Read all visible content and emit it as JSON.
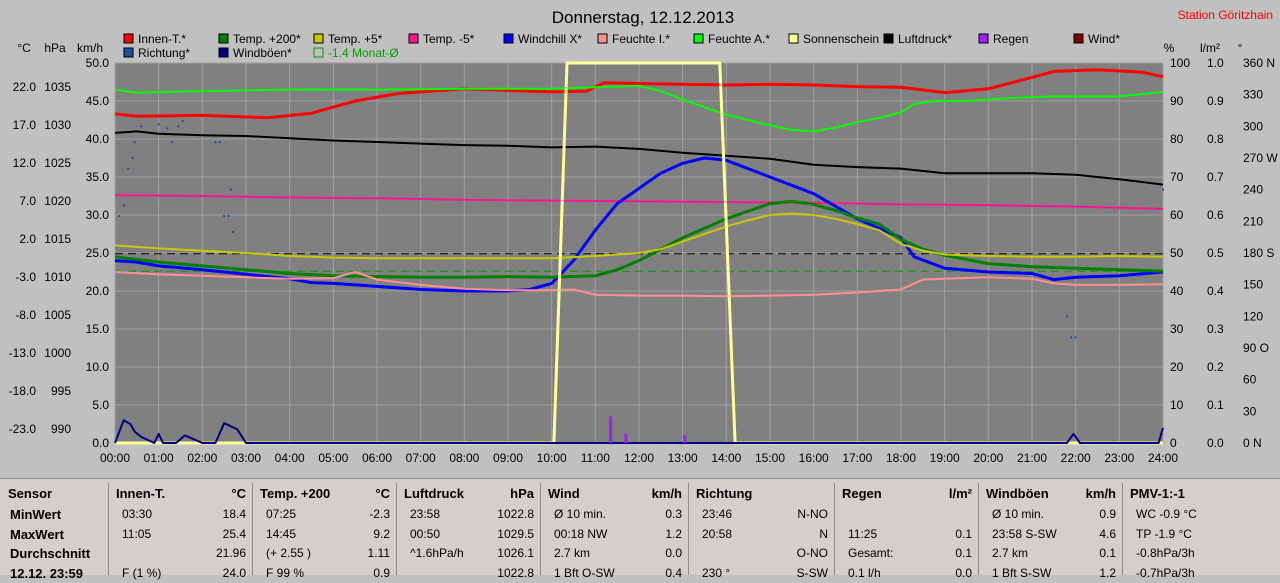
{
  "header": {
    "title": "Donnerstag, 12.12.2013",
    "station": "Station Göritzhain"
  },
  "axes": {
    "left_units": [
      "°C",
      "hPa",
      "km/h"
    ],
    "right_units": [
      "%",
      "l/m²",
      "°"
    ],
    "temp_ticks": [
      "22.0",
      "17.0",
      "12.0",
      "7.0",
      "2.0",
      "-3.0",
      "-8.0",
      "-13.0",
      "-18.0",
      "-23.0"
    ],
    "hpa_ticks": [
      "1035",
      "1030",
      "1025",
      "1020",
      "1015",
      "1010",
      "1005",
      "1000",
      "995",
      "990"
    ],
    "kmh_ticks": [
      "50.0",
      "45.0",
      "40.0",
      "35.0",
      "30.0",
      "25.0",
      "20.0",
      "15.0",
      "10.0",
      "5.0",
      "0.0"
    ],
    "pct_ticks": [
      "100",
      "90",
      "80",
      "70",
      "60",
      "50",
      "40",
      "30",
      "20",
      "10",
      "0"
    ],
    "rain_ticks": [
      "1.0",
      "0.9",
      "0.8",
      "0.7",
      "0.6",
      "0.5",
      "0.4",
      "0.3",
      "0.2",
      "0.1",
      "0.0"
    ],
    "deg_ticks": [
      "360 N",
      "330",
      "300",
      "270 W",
      "240",
      "210",
      "180 S",
      "150",
      "120",
      "90 O",
      "60",
      "30",
      "0 N"
    ],
    "x_ticks": [
      "00:00",
      "01:00",
      "02:00",
      "03:00",
      "04:00",
      "05:00",
      "06:00",
      "07:00",
      "08:00",
      "09:00",
      "10:00",
      "11:00",
      "12:00",
      "13:00",
      "14:00",
      "15:00",
      "16:00",
      "17:00",
      "18:00",
      "19:00",
      "20:00",
      "21:00",
      "22:00",
      "23:00",
      "24:00"
    ]
  },
  "legend": [
    {
      "label": "Innen-T.*",
      "color": "#ff0000"
    },
    {
      "label": "Temp. +200*",
      "color": "#008000"
    },
    {
      "label": "Temp. +5*",
      "color": "#c8c800"
    },
    {
      "label": "Temp. -5*",
      "color": "#ff1493"
    },
    {
      "label": "Windchill X*",
      "color": "#0000ff"
    },
    {
      "label": "Feuchte I.*",
      "color": "#ff9090"
    },
    {
      "label": "Feuchte A.*",
      "color": "#00ff00"
    },
    {
      "label": "Sonnenschein",
      "color": "#ffff99"
    },
    {
      "label": "Luftdruck*",
      "color": "#000000"
    },
    {
      "label": "Regen",
      "color": "#a020f0"
    },
    {
      "label": "Wind*",
      "color": "#800000"
    },
    {
      "label": "Richtung*",
      "color": "#1e50a0"
    },
    {
      "label": "Windböen*",
      "color": "#000080"
    },
    {
      "label": "-1.4 Monat-Ø",
      "color": "#00a000"
    }
  ],
  "chart_data": {
    "type": "line",
    "x_unit": "hour",
    "xlim": [
      0,
      24
    ],
    "temp_range": [
      -23,
      27
    ],
    "hpa_range": [
      990,
      1040
    ],
    "kmh_range": [
      0,
      50
    ],
    "pct_range": [
      0,
      100
    ],
    "series": [
      {
        "name": "Innen-T.*",
        "color": "#ff0000",
        "axis": "kmh",
        "width": 3,
        "x": [
          0,
          0.5,
          2,
          3.5,
          4.5,
          5.5,
          6.5,
          8,
          9,
          10,
          10.8,
          11.2,
          12,
          13,
          14,
          15,
          16,
          17,
          18,
          19,
          20,
          20.8,
          21.5,
          22.5,
          23.5,
          24
        ],
        "y": [
          43.3,
          43.0,
          43.1,
          42.8,
          43.4,
          45.0,
          46.0,
          46.6,
          46.4,
          46.2,
          46.3,
          47.4,
          47.3,
          47.2,
          47.1,
          47.2,
          47.1,
          46.9,
          46.8,
          46.1,
          46.6,
          47.8,
          48.9,
          49.1,
          48.8,
          48.2
        ]
      },
      {
        "name": "Feuchte A.*",
        "color": "#00ff00",
        "axis": "kmh",
        "width": 2,
        "x": [
          0,
          0.5,
          2,
          4,
          6,
          8,
          10,
          11,
          12,
          12.5,
          13,
          14,
          15,
          15.5,
          16,
          16.5,
          17,
          17.5,
          18,
          18.3,
          18.8,
          19.5,
          20.5,
          21.5,
          23,
          24
        ],
        "y": [
          46.5,
          46.1,
          46.3,
          46.5,
          46.5,
          46.6,
          46.6,
          46.8,
          47.0,
          46.3,
          45.2,
          43.2,
          41.8,
          41.2,
          41.0,
          41.5,
          42.2,
          42.8,
          43.5,
          44.6,
          45.0,
          45.0,
          45.4,
          45.6,
          45.6,
          46.2
        ]
      },
      {
        "name": "Luftdruck*",
        "color": "#000000",
        "axis": "kmh",
        "width": 2,
        "x": [
          0,
          0.5,
          1,
          2,
          3,
          4,
          5,
          6,
          7,
          8,
          9,
          10,
          11,
          12,
          13,
          14,
          15,
          16,
          17,
          18,
          19,
          20,
          21,
          22,
          23,
          24
        ],
        "y": [
          40.8,
          41.0,
          40.7,
          40.5,
          40.4,
          40.1,
          39.8,
          39.6,
          39.4,
          39.2,
          39.1,
          38.9,
          39.0,
          38.7,
          38.2,
          37.8,
          37.4,
          36.6,
          36.3,
          36.1,
          35.5,
          35.5,
          35.5,
          35.3,
          34.7,
          34.0
        ]
      },
      {
        "name": "Temp. -5*",
        "color": "#ff1493",
        "axis": "kmh",
        "width": 2,
        "x": [
          0,
          2,
          4,
          6,
          8,
          10,
          12,
          14,
          16,
          18,
          20,
          22,
          24
        ],
        "y": [
          32.6,
          32.5,
          32.3,
          32.2,
          32.0,
          31.9,
          31.8,
          31.7,
          31.6,
          31.4,
          31.3,
          31.1,
          30.8
        ]
      },
      {
        "name": "Windchill X*",
        "color": "#0000ff",
        "axis": "kmh",
        "width": 3,
        "x": [
          0,
          0.5,
          1,
          2,
          3,
          4,
          4.5,
          5,
          6,
          7,
          8,
          9,
          9.5,
          10,
          10.5,
          11,
          11.5,
          12,
          12.5,
          13,
          13.5,
          14,
          15,
          16,
          17,
          18,
          18.3,
          19,
          20,
          21,
          21.5,
          22,
          23,
          24
        ],
        "y": [
          24.0,
          23.8,
          23.3,
          22.8,
          22.2,
          21.6,
          21.1,
          21.0,
          20.6,
          20.2,
          20.0,
          20.0,
          20.2,
          21.0,
          24.0,
          28.0,
          31.5,
          33.5,
          35.5,
          36.8,
          37.5,
          37.2,
          35.0,
          32.8,
          29.5,
          27.0,
          24.5,
          23.0,
          22.5,
          22.3,
          21.5,
          21.8,
          22.0,
          22.5
        ]
      },
      {
        "name": "Temp. +200*",
        "color": "#008000",
        "axis": "kmh",
        "width": 3,
        "x": [
          0,
          1,
          2,
          3,
          4,
          5,
          6,
          7,
          8,
          9,
          10,
          11,
          11.5,
          12,
          12.5,
          13,
          14,
          15,
          15.5,
          16,
          16.5,
          17,
          17.5,
          18,
          18.5,
          19,
          20,
          21,
          22,
          23,
          24
        ],
        "y": [
          24.5,
          23.8,
          23.3,
          22.8,
          22.3,
          22.0,
          21.9,
          21.8,
          21.8,
          21.9,
          21.8,
          22.0,
          22.8,
          24.0,
          25.5,
          27.0,
          29.5,
          31.5,
          31.8,
          31.4,
          30.6,
          29.6,
          28.8,
          26.8,
          25.5,
          24.7,
          23.6,
          23.2,
          23.0,
          22.8,
          22.6
        ]
      },
      {
        "name": "Temp. +5*",
        "color": "#c8c800",
        "axis": "kmh",
        "width": 2,
        "x": [
          0,
          1,
          2,
          3,
          4,
          5,
          6,
          7,
          8,
          9,
          10,
          11,
          12,
          12.5,
          13,
          13.5,
          14,
          14.5,
          15,
          15.5,
          16,
          16.5,
          17,
          17.5,
          18,
          18.5,
          19,
          20,
          21,
          22,
          23,
          24
        ],
        "y": [
          26.0,
          25.6,
          25.3,
          25.0,
          24.6,
          24.4,
          24.3,
          24.3,
          24.3,
          24.3,
          24.3,
          24.6,
          25.0,
          25.5,
          26.5,
          27.5,
          28.5,
          29.3,
          30.0,
          30.2,
          30.0,
          29.5,
          28.8,
          28.0,
          26.2,
          25.3,
          24.8,
          24.6,
          24.5,
          24.5,
          24.6,
          24.5
        ]
      },
      {
        "name": "Feuchte I.*",
        "color": "#ff9090",
        "axis": "kmh",
        "width": 2,
        "x": [
          0,
          1,
          2,
          3,
          4,
          5,
          5.5,
          6,
          7,
          8,
          9,
          10,
          10.5,
          11,
          12,
          13,
          14,
          15,
          16,
          17,
          17.5,
          18,
          18.5,
          19,
          20,
          21,
          21.5,
          22,
          23,
          24
        ],
        "y": [
          22.5,
          22.2,
          22.0,
          21.8,
          21.6,
          21.7,
          22.5,
          21.5,
          20.8,
          20.3,
          20.1,
          20.1,
          20.2,
          19.5,
          19.4,
          19.4,
          19.3,
          19.4,
          19.5,
          19.8,
          20.0,
          20.2,
          21.5,
          21.6,
          21.8,
          21.6,
          21.0,
          20.8,
          20.8,
          20.9
        ]
      },
      {
        "name": "Sonnenschein",
        "color": "#ffff99",
        "axis": "kmh",
        "width": 3,
        "x": [
          0,
          10.05,
          10.35,
          13.85,
          14.2,
          24
        ],
        "y": [
          0,
          0,
          50,
          50,
          0,
          0
        ]
      },
      {
        "name": "Windböen*",
        "color": "#000080",
        "axis": "kmh",
        "width": 2,
        "x": [
          0,
          0.2,
          0.35,
          0.45,
          0.6,
          0.9,
          1.0,
          1.1,
          1.4,
          1.6,
          1.8,
          2.0,
          2.3,
          2.5,
          2.8,
          3.0,
          3.2,
          21.8,
          21.95,
          22.1,
          22.3,
          23.9,
          24
        ],
        "y": [
          0,
          3,
          2.5,
          1.5,
          0.8,
          0,
          1.2,
          0,
          0,
          1.0,
          0.5,
          0,
          0,
          2.6,
          1.8,
          0,
          0,
          0,
          1.2,
          0,
          0,
          0,
          2.0
        ]
      }
    ],
    "wind_direction": {
      "name": "Richtung*",
      "color": "#1e50a0",
      "axis": "deg",
      "x": [
        0.1,
        0.2,
        0.3,
        0.4,
        0.45,
        0.6,
        1.0,
        1.2,
        1.3,
        1.45,
        1.55,
        2.3,
        2.4,
        2.5,
        2.6,
        2.65,
        2.7,
        21.8,
        21.9,
        22.0,
        24
      ],
      "y": [
        215,
        225,
        260,
        270,
        285,
        300,
        302,
        298,
        285,
        300,
        305,
        285,
        285,
        215,
        215,
        240,
        200,
        120,
        100,
        100,
        240
      ]
    },
    "rain": {
      "name": "Regen",
      "color": "#a020f0",
      "axis": "rain",
      "x": [
        11.35,
        11.7,
        13.05
      ],
      "y": [
        0.07,
        0.025,
        0.02
      ]
    },
    "references": [
      {
        "name": "-1.4 Monat-Ø",
        "color": "#00a000",
        "kmh_value": 22.6,
        "style": "dashed"
      },
      {
        "name": "zero",
        "color": "#000000",
        "kmh_value": 24.9,
        "style": "dashed"
      }
    ]
  },
  "stats": {
    "row_labels": {
      "min": "MinWert",
      "max": "MaxWert",
      "avg": "Durchschnitt",
      "last": "12.12. 23:59"
    },
    "sensor_header": "Sensor",
    "columns": [
      {
        "title": "Innen-T.",
        "unit": "°C",
        "rows": [
          [
            "03:30",
            "18.4"
          ],
          [
            "11:05",
            "25.4"
          ],
          [
            "",
            "21.96"
          ],
          [
            "F (1 %)",
            "24.0"
          ]
        ]
      },
      {
        "title": "Temp. +200",
        "unit": "°C",
        "rows": [
          [
            "07:25",
            "-2.3"
          ],
          [
            "14:45",
            "9.2"
          ],
          [
            "(+ 2.55 )",
            "1.11"
          ],
          [
            "F 99 %",
            "0.9"
          ]
        ]
      },
      {
        "title": "Luftdruck",
        "unit": "hPa",
        "rows": [
          [
            "23:58",
            "1022.8"
          ],
          [
            "00:50",
            "1029.5"
          ],
          [
            "^1.6hPa/h",
            "1026.1"
          ],
          [
            "",
            "1022.8"
          ]
        ]
      },
      {
        "title": "Wind",
        "unit": "km/h",
        "rows": [
          [
            "Ø 10 min.",
            "0.3"
          ],
          [
            "00:18  NW",
            "1.2"
          ],
          [
            "2.7 km",
            "0.0"
          ],
          [
            "1 Bft O-SW",
            "0.4"
          ]
        ]
      },
      {
        "title": "Richtung",
        "unit": "",
        "rows": [
          [
            "23:46",
            "N-NO"
          ],
          [
            "20:58",
            "N"
          ],
          [
            "",
            "O-NO"
          ],
          [
            "230 °",
            "S-SW"
          ]
        ]
      },
      {
        "title": "Regen",
        "unit": "l/m²",
        "rows": [
          [
            "",
            ""
          ],
          [
            "11:25",
            "0.1"
          ],
          [
            "Gesamt:",
            "0.1"
          ],
          [
            "0.1 l/h",
            "0.0"
          ]
        ]
      },
      {
        "title": "Windböen",
        "unit": "km/h",
        "rows": [
          [
            "Ø 10 min.",
            "0.9"
          ],
          [
            "23:58  S-SW",
            "4.6"
          ],
          [
            "2.7 km",
            "0.1"
          ],
          [
            "1 Bft S-SW",
            "1.2"
          ]
        ]
      },
      {
        "title": "PMV-1:-1",
        "unit": "",
        "rows": [
          [
            "WC -0.9 °C",
            ""
          ],
          [
            "TP -1.9 °C",
            ""
          ],
          [
            "-0.8hPa/3h",
            ""
          ],
          [
            "-0.7hPa/3h",
            ""
          ]
        ]
      }
    ]
  }
}
